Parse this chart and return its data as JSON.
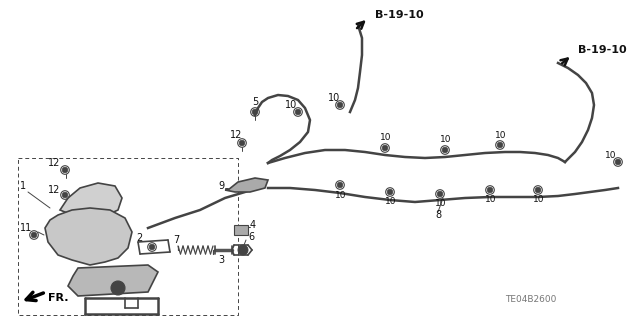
{
  "bg_color": "#ffffff",
  "diagram_color": "#444444",
  "text_color": "#111111",
  "ref_code": "TE04B2600",
  "fr_label": "FR.",
  "b1910_label": "B-19-10",
  "figsize": [
    6.4,
    3.19
  ],
  "dpi": 100
}
